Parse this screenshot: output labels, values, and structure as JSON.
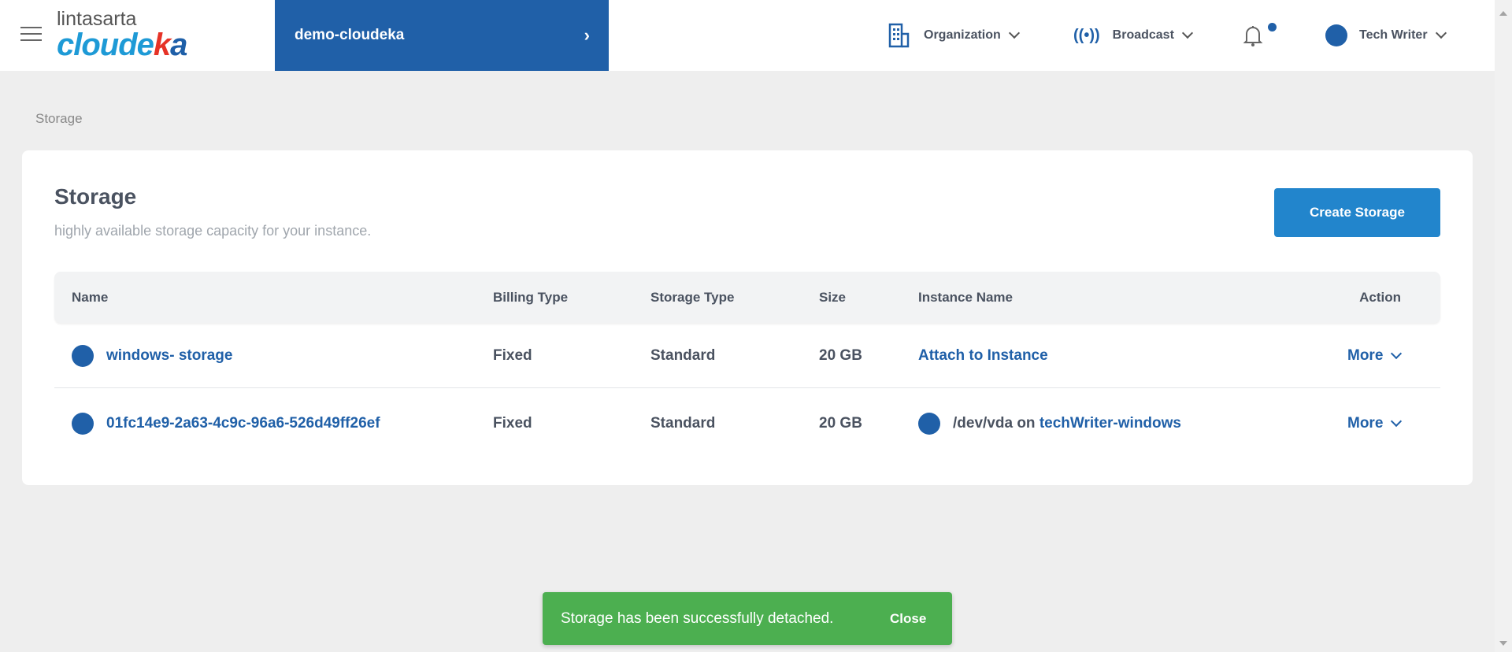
{
  "header": {
    "logo_top": "lintasarta",
    "logo_bottom": "cloudeka",
    "project": "demo-cloudeka",
    "organization": "Organization",
    "broadcast": "Broadcast",
    "user": "Tech Writer",
    "accent": "#2060a8"
  },
  "breadcrumb": "Storage",
  "page": {
    "title": "Storage",
    "subtitle": "highly available storage capacity for your instance.",
    "create_label": "Create Storage"
  },
  "table": {
    "columns": [
      "Name",
      "Billing Type",
      "Storage Type",
      "Size",
      "Instance Name",
      "Action"
    ],
    "rows": [
      {
        "name": "windows- storage",
        "billing": "Fixed",
        "type": "Standard",
        "size": "20 GB",
        "instance": "Attach to Instance",
        "instance_prefix": "",
        "action": "More"
      },
      {
        "name": "01fc14e9-2a63-4c9c-96a6-526d49ff26ef",
        "billing": "Fixed",
        "type": "Standard",
        "size": "20 GB",
        "instance_prefix": "/dev/vda on ",
        "instance": "techWriter-windows",
        "action": "More"
      }
    ]
  },
  "toast": {
    "message": "Storage has been successfully detached.",
    "close": "Close",
    "color": "#4caf50"
  }
}
